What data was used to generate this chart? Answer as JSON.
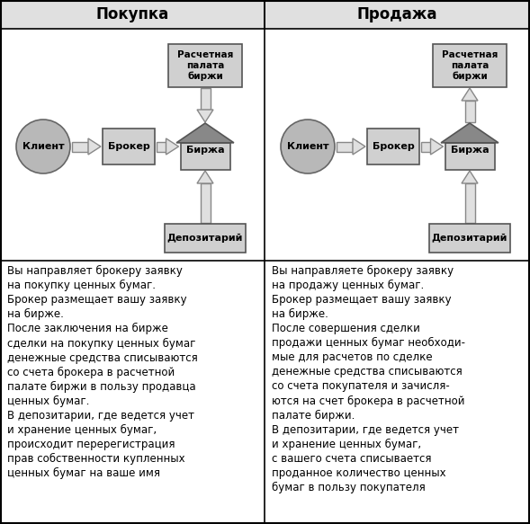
{
  "title_left": "Покупка",
  "title_right": "Продажа",
  "left_text": "Вы направляет брокеру заявку\nна покупку ценных бумаг.\nБрокер размещает вашу заявку\nна бирже.\nПосле заключения на бирже\nсделки на покупку ценных бумаг\nденежные средства списываются\nсо счета брокера в расчетной\nпалате биржи в пользу продавца\nценных бумаг.\nВ депозитарии, где ведется учет\nи хранение ценных бумаг,\nпроисходит перерегистрация\nправ собственности купленных\nценных бумаг на ваше имя",
  "right_text": "Вы направляете брокеру заявку\nна продажу ценных бумаг.\nБрокер размещает вашу заявку\nна бирже.\nПосле совершения сделки\nпродажи ценных бумаг необходи-\nмые для расчетов по сделке\nденежные средства списываются\nсо счета покупателя и зачисля-\nются на счет брокера в расчетной\nпалате биржи.\nВ депозитарии, где ведется учет\nи хранение ценных бумаг,\nс вашего счета списывается\nпроданное количество ценных\nбумаг в пользу покупателя",
  "bg_color": "#ffffff",
  "box_fill": "#d0d0d0",
  "box_edge": "#555555",
  "circle_fill": "#b8b8b8",
  "circle_edge": "#666666",
  "house_body_fill": "#d0d0d0",
  "house_roof_fill": "#888888",
  "arrow_fill": "#e0e0e0",
  "arrow_edge": "#888888",
  "title_bg": "#e0e0e0",
  "border_color": "#000000",
  "text_color": "#000000",
  "title_fontsize": 12,
  "label_fontsize": 8,
  "text_fontsize": 8.5
}
